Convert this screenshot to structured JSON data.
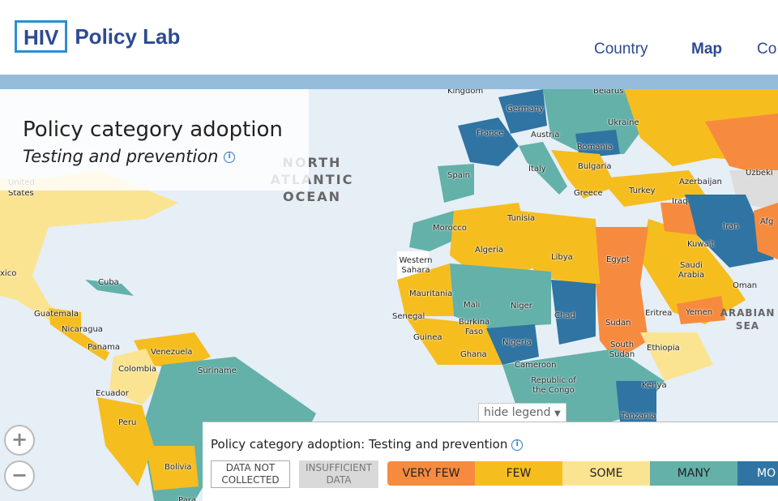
{
  "header": {
    "logo_box": "HIV",
    "logo_text": "Policy Lab",
    "nav": [
      "Country",
      "Map",
      "Co"
    ]
  },
  "title": {
    "main": "Policy category adoption",
    "sub": "Testing and prevention",
    "info": "i"
  },
  "colors": {
    "very_few": "#f68b3f",
    "few": "#f6bd1f",
    "some": "#fbe491",
    "many": "#63b1a9",
    "most": "#2f74a2",
    "ocean": "#e6eef6",
    "banner": "#95bcdb"
  },
  "map": {
    "oceans": [
      "NORTH ATLANTIC OCEAN",
      "ARABIAN SEA"
    ],
    "labels": [
      "Kingdom",
      "Belarus",
      "Germany",
      "France",
      "Austria",
      "Ukraine",
      "Romania",
      "Italy",
      "Bulgaria",
      "Spain",
      "Greece",
      "Turkey",
      "Azerbaijan",
      "Uzbeki",
      "United",
      "States",
      "Tunisia",
      "Morocco",
      "Algeria",
      "Libya",
      "Iraq",
      "Iran",
      "Afg",
      "Kuwait",
      "Egypt",
      "Saudi Arabia",
      "Oman",
      "Western Sahara",
      "Mauritania",
      "Mali",
      "Niger",
      "Chad",
      "Sudan",
      "Eritrea",
      "Yemen",
      "Senegal",
      "Burkina Faso",
      "Guinea",
      "Ghana",
      "Nigeria",
      "Ethiopia",
      "South Sudan",
      "Cameroon",
      "Republic of the Congo",
      "Kenya",
      "Tanzania",
      "Cuba",
      "Guatemala",
      "Nicaragua",
      "Panama",
      "Venezuela",
      "Colombia",
      "Suriname",
      "Ecuador",
      "Peru",
      "Bolivia",
      "xico",
      "Para"
    ]
  },
  "controls": {
    "zoom_in": "+",
    "zoom_out": "−",
    "hide_legend": "hide legend",
    "hide_arrow": "▼"
  },
  "legend": {
    "title": "Policy category adoption: Testing and prevention",
    "info": "i",
    "not_collected": "DATA NOT COLLECTED",
    "insufficient": "INSUFFICIENT DATA",
    "scale": [
      "VERY FEW",
      "FEW",
      "SOME",
      "MANY",
      "MO"
    ]
  }
}
